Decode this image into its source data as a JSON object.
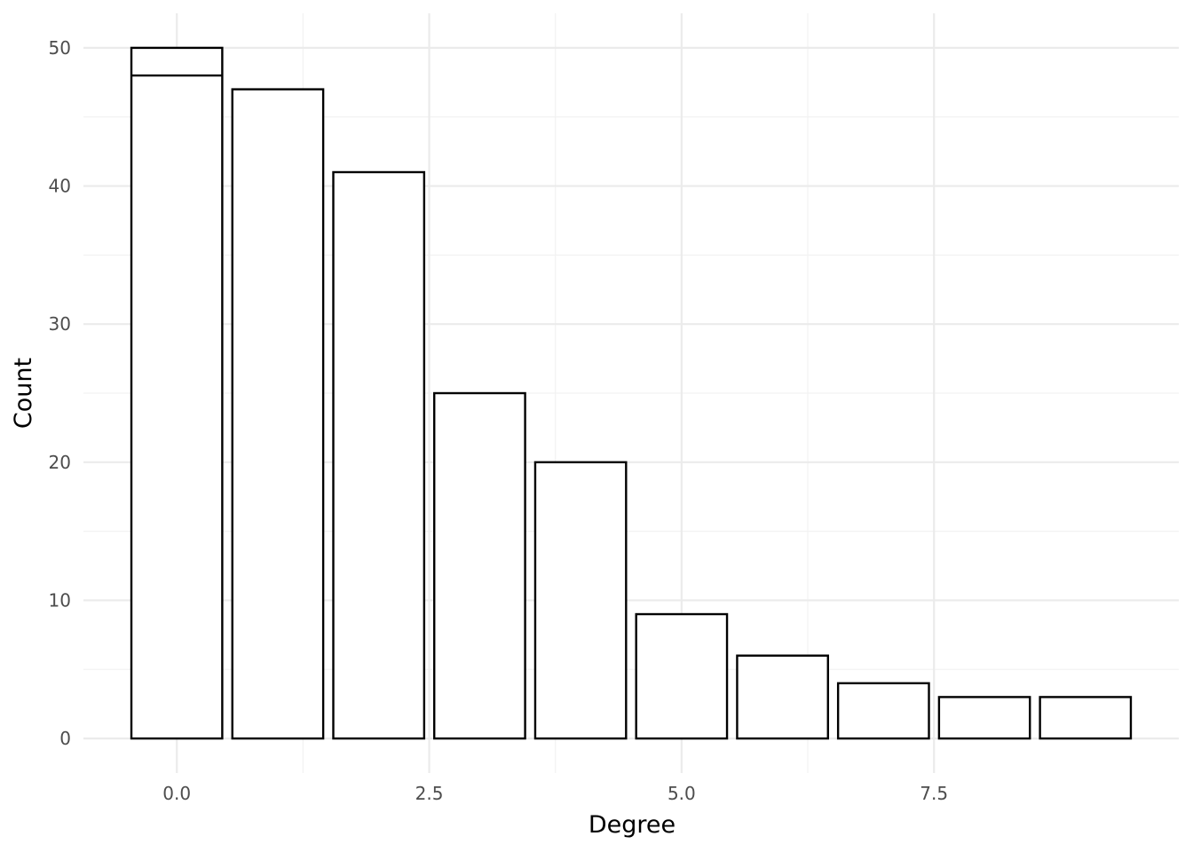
{
  "chart_data": {
    "type": "bar",
    "title": "",
    "xlabel": "Degree",
    "ylabel": "Count",
    "x": [
      0,
      1,
      2,
      3,
      4,
      5,
      6,
      7,
      8,
      9
    ],
    "values": [
      50,
      47,
      41,
      25,
      20,
      9,
      6,
      4,
      3,
      3
    ],
    "overlay_segments": [
      {
        "x": 0,
        "y": 48
      }
    ],
    "xlim": [
      -0.925,
      9.925
    ],
    "ylim": [
      -2.5,
      52.5
    ],
    "x_ticks": [
      0.0,
      2.5,
      5.0,
      7.5
    ],
    "x_tick_labels": [
      "0.0",
      "2.5",
      "5.0",
      "7.5"
    ],
    "y_ticks": [
      0,
      10,
      20,
      30,
      40,
      50
    ],
    "y_tick_labels": [
      "0",
      "10",
      "20",
      "30",
      "40",
      "50"
    ],
    "bar_width": 0.9,
    "grid": true,
    "legend": "none",
    "colors": {
      "bar_fill": "#ffffff",
      "bar_outline": "#000000",
      "grid": "#ebebeb"
    }
  }
}
